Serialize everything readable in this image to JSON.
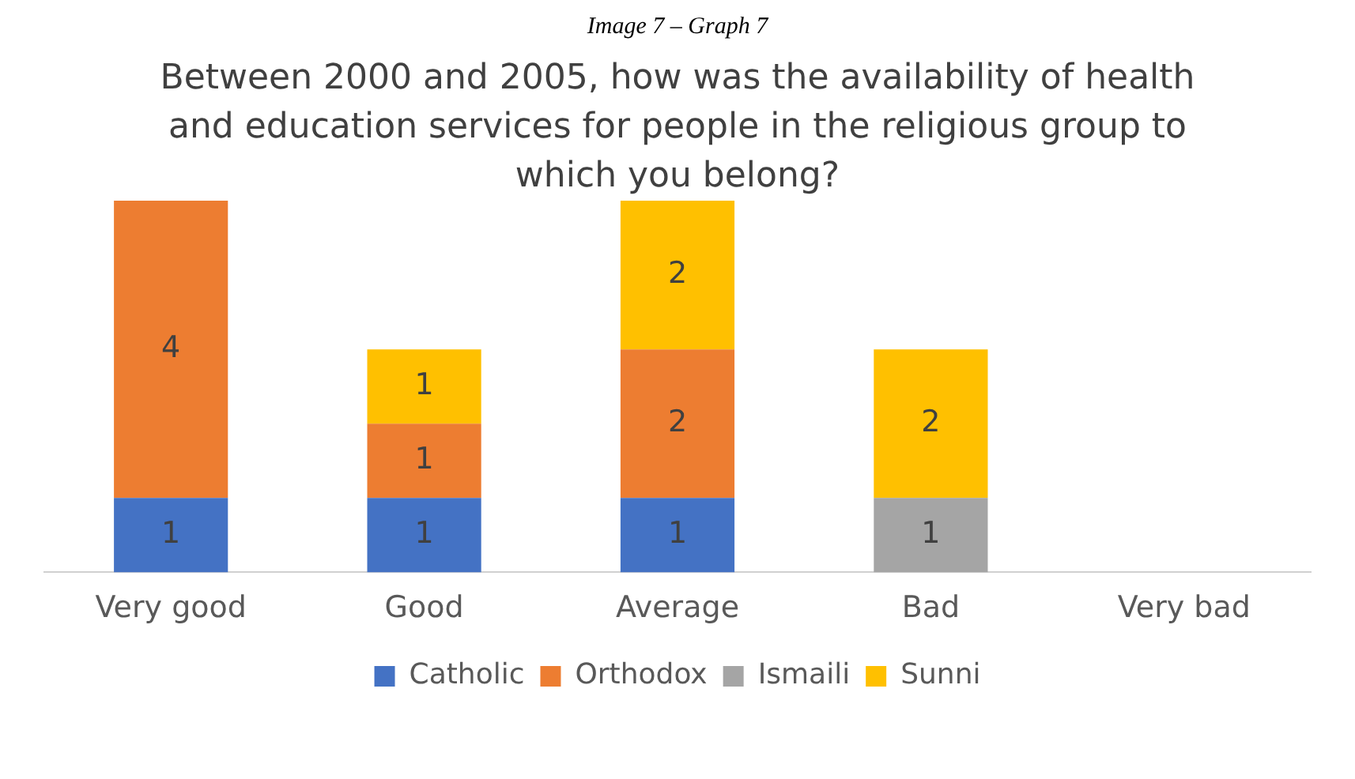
{
  "chart_data": {
    "type": "bar",
    "stacked": true,
    "title": "Between 2000 and 2005, how was the availability of health and education services for people in the religious group to which you belong?",
    "annotations": [
      "Image 7 – Graph 7"
    ],
    "categories": [
      "Very good",
      "Good",
      "Average",
      "Bad",
      "Very bad"
    ],
    "series": [
      {
        "name": "Catholic",
        "color": "#4472c4",
        "values": [
          1,
          1,
          1,
          null,
          null
        ]
      },
      {
        "name": "Orthodox",
        "color": "#ed7d31",
        "values": [
          4,
          1,
          2,
          null,
          null
        ]
      },
      {
        "name": "Ismaili",
        "color": "#a5a5a5",
        "values": [
          null,
          null,
          null,
          1,
          null
        ]
      },
      {
        "name": "Sunni",
        "color": "#ffc000",
        "values": [
          null,
          1,
          2,
          2,
          null
        ]
      }
    ],
    "data_labels": true,
    "grid": false,
    "legend": "bottom"
  }
}
